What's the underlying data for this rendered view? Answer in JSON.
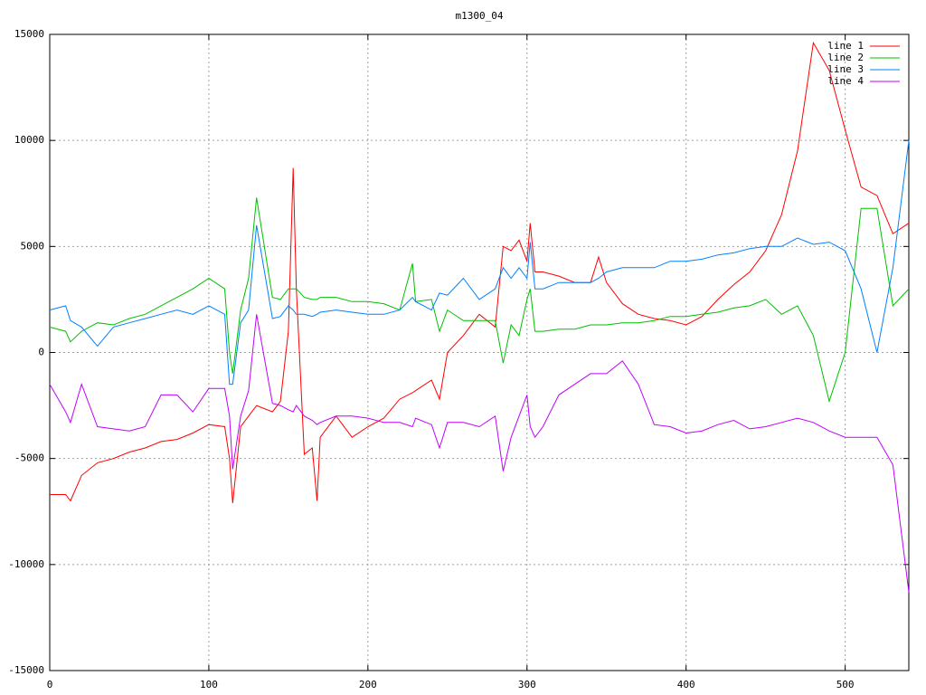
{
  "chart_data": {
    "type": "line",
    "title": "m1300_04",
    "x": [
      0,
      10,
      13,
      20,
      30,
      40,
      50,
      60,
      70,
      80,
      90,
      100,
      110,
      113,
      115,
      120,
      125,
      130,
      140,
      145,
      150,
      153,
      155,
      160,
      165,
      168,
      170,
      180,
      190,
      200,
      210,
      220,
      228,
      230,
      240,
      245,
      250,
      260,
      270,
      280,
      285,
      290,
      295,
      300,
      302,
      305,
      310,
      320,
      330,
      340,
      345,
      350,
      360,
      370,
      380,
      390,
      400,
      410,
      420,
      430,
      440,
      450,
      460,
      470,
      480,
      490,
      500,
      510,
      520,
      530,
      540
    ],
    "series": [
      {
        "name": "line 1",
        "color": "#ff0000",
        "values": [
          -6700,
          -6700,
          -7000,
          -5800,
          -5200,
          -5000,
          -4700,
          -4500,
          -4200,
          -4100,
          -3800,
          -3400,
          -3500,
          -5000,
          -7100,
          -3500,
          -3000,
          -2500,
          -2800,
          -2300,
          1000,
          8700,
          3000,
          -4800,
          -4500,
          -7000,
          -4000,
          -3000,
          -4000,
          -3500,
          -3100,
          -2200,
          -1900,
          -1800,
          -1300,
          -2200,
          0,
          800,
          1800,
          1200,
          5000,
          4800,
          5300,
          4300,
          6100,
          3800,
          3800,
          3600,
          3300,
          3300,
          4500,
          3300,
          2300,
          1800,
          1600,
          1500,
          1300,
          1700,
          2500,
          3200,
          3800,
          4800,
          6500,
          9500,
          14600,
          13300,
          10500,
          7800,
          7400,
          5600,
          6100
        ]
      },
      {
        "name": "line 2",
        "color": "#00c000",
        "values": [
          1200,
          1000,
          500,
          1000,
          1400,
          1300,
          1600,
          1800,
          2200,
          2600,
          3000,
          3500,
          3000,
          0,
          -1000,
          2000,
          3500,
          7300,
          2600,
          2500,
          3000,
          3000,
          3000,
          2600,
          2500,
          2500,
          2600,
          2600,
          2400,
          2400,
          2300,
          2000,
          4200,
          2400,
          2500,
          1000,
          2000,
          1500,
          1500,
          1500,
          -500,
          1300,
          800,
          2500,
          3000,
          1000,
          1000,
          1100,
          1100,
          1300,
          1300,
          1300,
          1400,
          1400,
          1500,
          1700,
          1700,
          1800,
          1900,
          2100,
          2200,
          2500,
          1800,
          2200,
          800,
          -2300,
          0,
          6800,
          6800,
          2200,
          3000
        ]
      },
      {
        "name": "line 3",
        "color": "#0080ff",
        "values": [
          2000,
          2200,
          1500,
          1200,
          300,
          1200,
          1400,
          1600,
          1800,
          2000,
          1800,
          2200,
          1800,
          -1500,
          -1500,
          1400,
          2000,
          6000,
          1600,
          1700,
          2200,
          2000,
          1800,
          1800,
          1700,
          1800,
          1900,
          2000,
          1900,
          1800,
          1800,
          2000,
          2600,
          2400,
          2000,
          2800,
          2700,
          3500,
          2500,
          3000,
          4000,
          3500,
          4000,
          3500,
          5200,
          3000,
          3000,
          3300,
          3300,
          3300,
          3500,
          3800,
          4000,
          4000,
          4000,
          4300,
          4300,
          4400,
          4600,
          4700,
          4900,
          5000,
          5000,
          5400,
          5100,
          5200,
          4800,
          3000,
          0,
          4000,
          10000
        ]
      },
      {
        "name": "line 4",
        "color": "#c000ff",
        "values": [
          -1500,
          -2800,
          -3300,
          -1500,
          -3500,
          -3600,
          -3700,
          -3500,
          -2000,
          -2000,
          -2800,
          -1700,
          -1700,
          -3000,
          -5500,
          -3000,
          -1800,
          1800,
          -2400,
          -2500,
          -2700,
          -2800,
          -2500,
          -3000,
          -3200,
          -3400,
          -3300,
          -3000,
          -3000,
          -3100,
          -3300,
          -3300,
          -3500,
          -3100,
          -3400,
          -4500,
          -3300,
          -3300,
          -3500,
          -3000,
          -5600,
          -4000,
          -3000,
          -2000,
          -3500,
          -4000,
          -3500,
          -2000,
          -1500,
          -1000,
          -1000,
          -1000,
          -400,
          -1500,
          -3400,
          -3500,
          -3800,
          -3700,
          -3400,
          -3200,
          -3600,
          -3500,
          -3300,
          -3100,
          -3300,
          -3700,
          -4000,
          -4000,
          -4000,
          -5300,
          -11300
        ]
      }
    ],
    "xlim": [
      0,
      540
    ],
    "ylim": [
      -15000,
      15000
    ],
    "xticks": [
      0,
      100,
      200,
      300,
      400,
      500
    ],
    "yticks": [
      -15000,
      -10000,
      -5000,
      0,
      5000,
      10000,
      15000
    ],
    "grid": true,
    "legend": "top-right"
  }
}
